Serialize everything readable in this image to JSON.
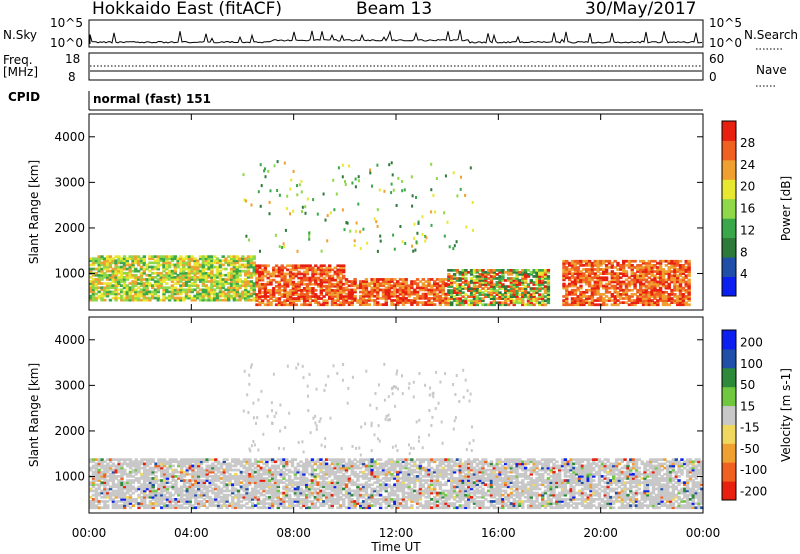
{
  "header": {
    "title": "Hokkaido East (fitACF)",
    "beam": "Beam 13",
    "date": "30/May/2017"
  },
  "panels": {
    "nsky_label": "N.Sky",
    "nsky_ticks": [
      "10^5",
      "10^0"
    ],
    "nsearch_label": "N.Search",
    "nsearch_ticks": [
      "10^5",
      "10^0"
    ],
    "freq_label_1": "Freq.",
    "freq_label_2": "[MHz]",
    "freq_ticks": [
      "18",
      "8"
    ],
    "nave_label": "Nave",
    "nave_ticks": [
      "60",
      "0"
    ],
    "cpid_label": "CPID",
    "cpid_value": "normal (fast) 151"
  },
  "colors": {
    "power": [
      "#0a1ff0",
      "#1f4fa8",
      "#2d7a3a",
      "#3aa84a",
      "#8fd84a",
      "#e8e830",
      "#f0a030",
      "#f06020",
      "#e82010"
    ],
    "velocity": [
      "#e82010",
      "#f06020",
      "#f0a030",
      "#f0d860",
      "#c8c8c8",
      "#70c840",
      "#2d8a3a",
      "#1f4fa8",
      "#0a1ff0"
    ]
  },
  "chart_data": [
    {
      "type": "heatmap",
      "xlabel": "Time UT",
      "ylabel": "Slant Range [km]",
      "x_ticks": [
        "00:00",
        "04:00",
        "08:00",
        "12:00",
        "16:00",
        "20:00",
        "00:00"
      ],
      "y_ticks": [
        1000,
        2000,
        3000,
        4000
      ],
      "ylim": [
        200,
        4500
      ],
      "colorbar_label": "Power [dB]",
      "colorbar_ticks": [
        4,
        8,
        12,
        16,
        20,
        24,
        28
      ],
      "regions": [
        {
          "t0": 0.0,
          "t1": 6.5,
          "r0": 400,
          "r1": 1400,
          "level": "mid"
        },
        {
          "t0": 6.5,
          "t1": 10.0,
          "r0": 300,
          "r1": 1200,
          "level": "high"
        },
        {
          "t0": 10.0,
          "t1": 14.0,
          "r0": 300,
          "r1": 900,
          "level": "high"
        },
        {
          "t0": 14.0,
          "t1": 18.0,
          "r0": 300,
          "r1": 1100,
          "level": "mix"
        },
        {
          "t0": 18.5,
          "t1": 23.5,
          "r0": 300,
          "r1": 1300,
          "level": "high"
        }
      ]
    },
    {
      "type": "heatmap",
      "xlabel": "Time UT",
      "ylabel": "Slant Range [km]",
      "x_ticks": [
        "00:00",
        "04:00",
        "08:00",
        "12:00",
        "16:00",
        "20:00",
        "00:00"
      ],
      "y_ticks": [
        1000,
        2000,
        3000,
        4000
      ],
      "ylim": [
        200,
        4500
      ],
      "colorbar_label": "Velocity [m s-1]",
      "colorbar_ticks": [
        200,
        100,
        50,
        15,
        -15,
        -50,
        -100,
        -200
      ],
      "regions": [
        {
          "t0": 0.0,
          "t1": 24.0,
          "r0": 300,
          "r1": 1400,
          "level": "grey"
        }
      ]
    }
  ]
}
